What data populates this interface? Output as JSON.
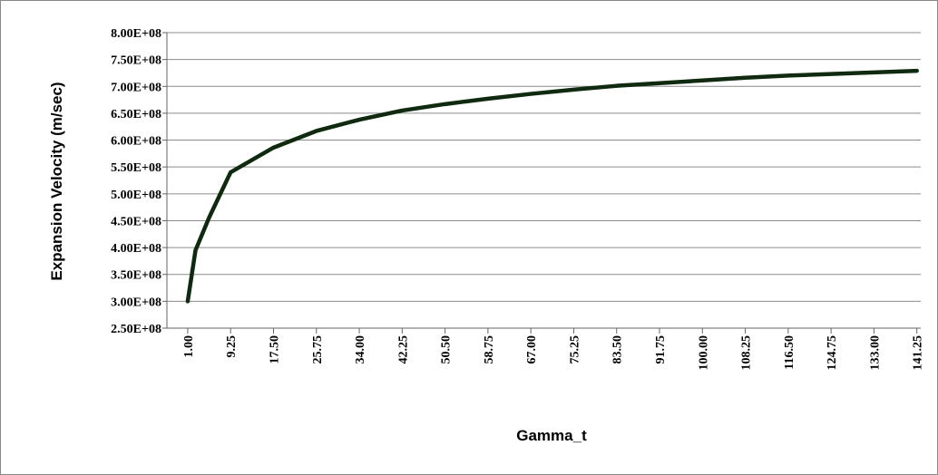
{
  "chart_data": {
    "type": "line",
    "x_label": "Gamma_t",
    "y_label": "Expansion Velocity  (m/sec)",
    "x": [
      1,
      2.5,
      5.125,
      9.25,
      17.5,
      25.75,
      34,
      42.25,
      50.5,
      58.75,
      67,
      75.25,
      83.5,
      91.75,
      100,
      108.25,
      116.5,
      124.75,
      133,
      141.25
    ],
    "series": [
      {
        "name": "Expansion Velocity",
        "color": "#0f2a0f",
        "values": [
          300000000,
          395000000,
          456000000,
          540000000,
          586000000,
          617000000,
          638000000,
          655000000,
          667000000,
          677000000,
          686000000,
          694000000,
          701000000,
          706000000,
          711000000,
          716000000,
          720000000,
          723000000,
          726000000,
          729000000
        ]
      }
    ],
    "xlim": [
      -3,
      142
    ],
    "xticks": [
      {
        "value": 1,
        "label": "1.00"
      },
      {
        "value": 9.25,
        "label": "9.25"
      },
      {
        "value": 17.5,
        "label": "17.50"
      },
      {
        "value": 25.75,
        "label": "25.75"
      },
      {
        "value": 34,
        "label": "34.00"
      },
      {
        "value": 42.25,
        "label": "42.25"
      },
      {
        "value": 50.5,
        "label": "50.50"
      },
      {
        "value": 58.75,
        "label": "58.75"
      },
      {
        "value": 67,
        "label": "67.00"
      },
      {
        "value": 75.25,
        "label": "75.25"
      },
      {
        "value": 83.5,
        "label": "83.50"
      },
      {
        "value": 91.75,
        "label": "91.75"
      },
      {
        "value": 100,
        "label": "100.00"
      },
      {
        "value": 108.25,
        "label": "108.25"
      },
      {
        "value": 116.5,
        "label": "116.50"
      },
      {
        "value": 124.75,
        "label": "124.75"
      },
      {
        "value": 133,
        "label": "133.00"
      },
      {
        "value": 141.25,
        "label": "141.25"
      }
    ],
    "ylim": [
      250000000,
      800000000
    ],
    "yticks": [
      {
        "value": 250000000,
        "label": "2.50E+08"
      },
      {
        "value": 300000000,
        "label": "3.00E+08"
      },
      {
        "value": 350000000,
        "label": "3.50E+08"
      },
      {
        "value": 400000000,
        "label": "4.00E+08"
      },
      {
        "value": 450000000,
        "label": "4.50E+08"
      },
      {
        "value": 500000000,
        "label": "5.00E+08"
      },
      {
        "value": 550000000,
        "label": "5.50E+08"
      },
      {
        "value": 600000000,
        "label": "6.00E+08"
      },
      {
        "value": 650000000,
        "label": "6.50E+08"
      },
      {
        "value": 700000000,
        "label": "7.00E+08"
      },
      {
        "value": 750000000,
        "label": "7.50E+08"
      },
      {
        "value": 800000000,
        "label": "8.00E+08"
      }
    ],
    "grid": true
  }
}
